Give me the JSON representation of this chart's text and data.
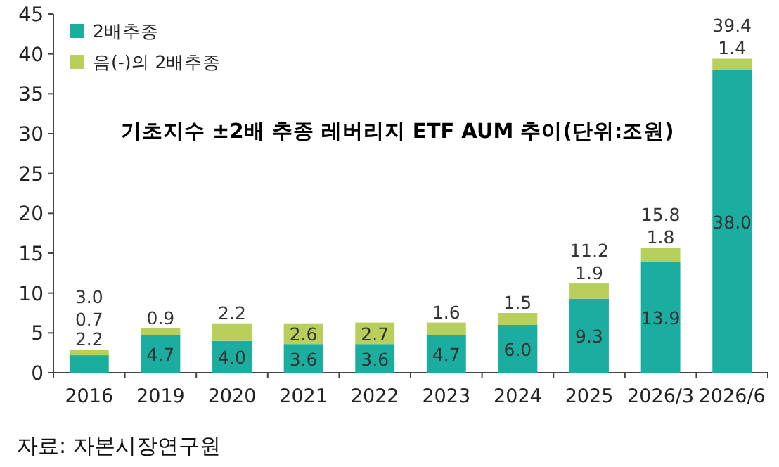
{
  "chart_data": {
    "type": "bar",
    "stacked": true,
    "title": "기초지수 ±2배 추종 레버리지 ETF AUM 추이(단위:조원)",
    "categories": [
      "2016",
      "2019",
      "2020",
      "2021",
      "2022",
      "2023",
      "2024",
      "2025",
      "2026/3",
      "2026/6"
    ],
    "series": [
      {
        "name": "2배추종",
        "color": "#1aada0",
        "values": [
          2.2,
          4.7,
          4.0,
          3.6,
          3.6,
          4.7,
          6.0,
          9.3,
          13.9,
          38.0
        ],
        "value_labels": [
          "2.2",
          "4.7",
          "4.0",
          "3.6",
          "3.6",
          "4.7",
          "6.0",
          "9.3",
          "13.9",
          "38.0"
        ]
      },
      {
        "name": "음(-)의 2배추종",
        "color": "#b8cf5c",
        "values": [
          0.7,
          0.9,
          2.2,
          2.6,
          2.7,
          1.6,
          1.5,
          1.9,
          1.8,
          1.4
        ],
        "value_labels": [
          "0.7",
          "0.9",
          "2.2",
          "2.6",
          "2.7",
          "1.6",
          "1.5",
          "1.9",
          "1.8",
          "1.4"
        ]
      }
    ],
    "totals": [
      "3.0",
      null,
      null,
      null,
      null,
      null,
      null,
      "11.2",
      "15.8",
      "39.4"
    ],
    "ylim": [
      0,
      45
    ],
    "yticks": [
      0,
      5,
      10,
      15,
      20,
      25,
      30,
      35,
      40,
      45
    ],
    "legend": "top left",
    "annotations": [
      "자료: 자본시장연구원"
    ]
  }
}
